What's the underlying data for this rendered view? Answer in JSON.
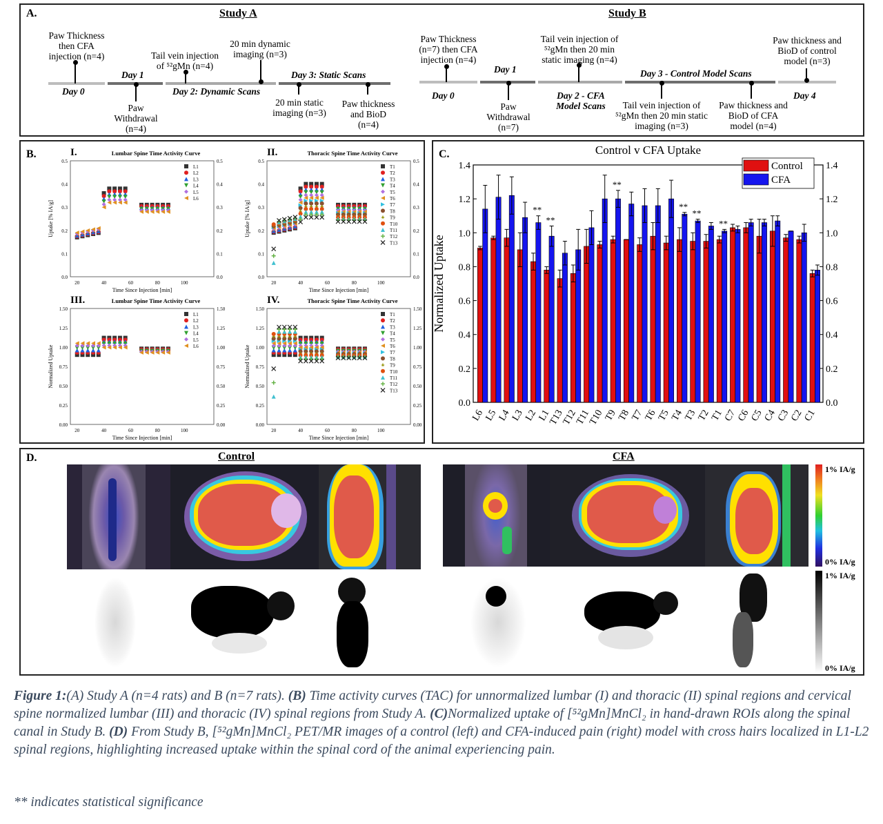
{
  "panelA": {
    "letter": "A.",
    "studyA": {
      "title": "Study A",
      "top_labels": [
        "Paw Thickness\nthen CFA\ninjection (n=4)",
        "Tail vein injection\nof ⁵²gMn (n=4)",
        "20 min dynamic\nimaging (n=3)"
      ],
      "days": [
        "Day 0",
        "Day 1",
        "Day 2: Dynamic Scans",
        "Day 3: Static Scans"
      ],
      "bottom_labels": [
        "Paw\nWithdrawal\n(n=4)",
        "20 min static\nimaging (n=3)",
        "Paw thickness\nand BioD\n(n=4)"
      ]
    },
    "studyB": {
      "title": "Study B",
      "top_labels": [
        "Paw Thickness\n(n=7) then CFA\ninjection (n=4)",
        "Tail vein injection of\n⁵²gMn then 20 min\nstatic imaging (n=4)",
        "Paw thickness and\nBioD of control\nmodel (n=3)"
      ],
      "days": [
        "Day 0",
        "Day 1",
        "Day 2 - CFA\nModel Scans",
        "Day 3 - Control Model Scans",
        "Day 4"
      ],
      "bottom_labels": [
        "Paw\nWithdrawal\n(n=7)",
        "Tail vein injection of\n⁵²gMn then 20 min static\nimaging (n=3)",
        "Paw thickness and\nBioD of CFA\nmodel (n=4)"
      ]
    }
  },
  "panelB": {
    "letter": "B.",
    "charts": [
      {
        "roman": "I.",
        "title": "Lumbar Spine Time Activity Curve",
        "ylabel": "Uptake [% IA/g]",
        "xlabel": "Time Since Injection [min]",
        "ylim": [
          0,
          0.5
        ],
        "yticks": [
          "0.0",
          "0.1",
          "0.2",
          "0.3",
          "0.4",
          "0.5"
        ],
        "legend": [
          "L1",
          "L2",
          "L3",
          "L4",
          "L5",
          "L6"
        ]
      },
      {
        "roman": "II.",
        "title": "Thoracic Spine Time Activity Curve",
        "ylabel": "Uptake [% IA/g]",
        "xlabel": "Time Since Injection [min]",
        "ylim": [
          0,
          0.5
        ],
        "yticks": [
          "0.0",
          "0.1",
          "0.2",
          "0.3",
          "0.4",
          "0.5"
        ],
        "legend": [
          "T1",
          "T2",
          "T3",
          "T4",
          "T5",
          "T6",
          "T7",
          "T8",
          "T9",
          "T10",
          "T11",
          "T12",
          "T13"
        ]
      },
      {
        "roman": "III.",
        "title": "Lumbar Spine Time Activity Curve",
        "ylabel": "Normalized Uptake",
        "xlabel": "Time Since Injection [min]",
        "ylim": [
          0,
          1.5
        ],
        "yticks": [
          "0.00",
          "0.25",
          "0.50",
          "0.75",
          "1.00",
          "1.25",
          "1.50"
        ],
        "legend": [
          "L1",
          "L2",
          "L3",
          "L4",
          "L5",
          "L6"
        ]
      },
      {
        "roman": "IV.",
        "title": "Thoracic Spine Time Activity Curve",
        "ylabel": "Normalized Uptake",
        "xlabel": "Time Since Injection [min]",
        "ylim": [
          0,
          1.5
        ],
        "yticks": [
          "0.00",
          "0.25",
          "0.50",
          "0.75",
          "1.00",
          "1.25",
          "1.50"
        ],
        "legend": [
          "T1",
          "T2",
          "T3",
          "T4",
          "T5",
          "T6",
          "T7",
          "T8",
          "T9",
          "T10",
          "T11",
          "T12",
          "T13"
        ]
      }
    ],
    "xticks": [
      "20",
      "40",
      "60",
      "80",
      "100"
    ]
  },
  "chart_data": {
    "type": "bar",
    "title": "Control v CFA Uptake",
    "ylabel": "Normalized Uptake",
    "ylim": [
      0,
      1.4
    ],
    "yticks": [
      "0.0",
      "0.2",
      "0.4",
      "0.6",
      "0.8",
      "1.0",
      "1.2",
      "1.4"
    ],
    "categories": [
      "L6",
      "L5",
      "L4",
      "L3",
      "L2",
      "L1",
      "T13",
      "T12",
      "T11",
      "T10",
      "T9",
      "T8",
      "T7",
      "T6",
      "T5",
      "T4",
      "T3",
      "T2",
      "T1",
      "C7",
      "C6",
      "C5",
      "C4",
      "C3",
      "C2",
      "C1"
    ],
    "series": [
      {
        "name": "Control",
        "color": "#e01010",
        "values": [
          0.91,
          0.97,
          0.97,
          0.9,
          0.83,
          0.78,
          0.73,
          0.76,
          0.92,
          0.93,
          0.96,
          0.96,
          0.93,
          0.98,
          0.94,
          0.96,
          0.95,
          0.95,
          0.96,
          1.03,
          1.03,
          0.98,
          1.01,
          0.97,
          0.96,
          0.76
        ],
        "errors": [
          0.01,
          0.01,
          0.05,
          0.1,
          0.05,
          0.02,
          0.05,
          0.05,
          0.1,
          0.02,
          0.02,
          0.0,
          0.04,
          0.08,
          0.04,
          0.07,
          0.05,
          0.04,
          0.02,
          0.02,
          0.03,
          0.1,
          0.09,
          0.02,
          0.02,
          0.02
        ]
      },
      {
        "name": "CFA",
        "color": "#1515ee",
        "values": [
          1.14,
          1.21,
          1.22,
          1.09,
          1.06,
          0.98,
          0.88,
          0.9,
          1.03,
          1.2,
          1.2,
          1.17,
          1.16,
          1.16,
          1.2,
          1.11,
          1.07,
          1.04,
          1.01,
          1.02,
          1.06,
          1.06,
          1.07,
          1.01,
          1.0,
          0.78
        ],
        "errors": [
          0.14,
          0.13,
          0.11,
          0.09,
          0.04,
          0.06,
          0.07,
          0.12,
          0.1,
          0.14,
          0.05,
          0.07,
          0.1,
          0.1,
          0.11,
          0.01,
          0.01,
          0.02,
          0.01,
          0.02,
          0.02,
          0.02,
          0.03,
          0.0,
          0.05,
          0.03
        ]
      }
    ],
    "significance": [
      "",
      "",
      "",
      "",
      "**",
      "**",
      "",
      "",
      "",
      "",
      "**",
      "",
      "",
      "",
      "",
      "**",
      "**",
      "",
      "**",
      "",
      "",
      "",
      "",
      "",
      "",
      ""
    ],
    "legend_position": "top-right"
  },
  "panelC": {
    "letter": "C."
  },
  "panelD": {
    "letter": "D.",
    "control_label": "Control",
    "cfa_label": "CFA",
    "colorbar_top": "1% IA/g",
    "colorbar_bottom": "0% IA/g",
    "graybar_top": "1% IA/g",
    "graybar_bottom": "0% IA/g"
  },
  "caption": {
    "fig": "Figure 1:",
    "part_A": "(A)",
    "text_A": " Study A (n=4 rats) and B (n=7 rats). ",
    "part_B": "(B)",
    "text_B": " Time activity curves (TAC) for unnormalized lumbar (I) and thoracic (II) spinal regions and cervical spine normalized lumbar (III) and thoracic (IV) spinal regions from Study A. ",
    "part_C": "(C)",
    "text_C": "Normalized uptake of [⁵²gMn]MnCl₂ in hand-drawn ROIs along the spinal canal in Study B. ",
    "part_D": "(D)",
    "text_D": " From Study B, [⁵²gMn]MnCl₂ PET/MR images of a control (left) and CFA-induced pain (right) model with cross hairs localized in L1-L2 spinal regions, highlighting increased uptake within the spinal cord of the animal experiencing pain.",
    "note": "** indicates statistical significance"
  }
}
